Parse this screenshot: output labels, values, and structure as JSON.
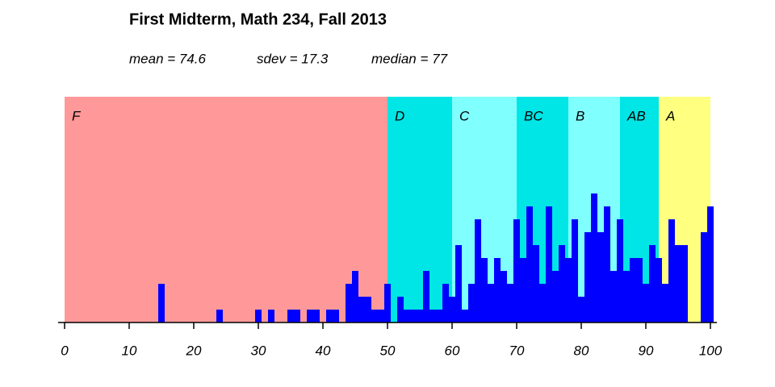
{
  "chart_data": {
    "type": "histogram",
    "title": "First Midterm, Math 234, Fall 2013",
    "stats": [
      "mean = 74.6",
      "sdev = 17.3",
      "median = 77"
    ],
    "color": "#0000ff",
    "bins": [
      14.5,
      15.5,
      16.5,
      17.5,
      18.5,
      19.5,
      20.5,
      21.5,
      22.5,
      23.5,
      24.5,
      25.5,
      26.5,
      27.5,
      28.5,
      29.5,
      30.5,
      31.5,
      32.5,
      33.5,
      34.5,
      35.5,
      36.5,
      37.5,
      38.5,
      39.5,
      40.5,
      41.5,
      42.5,
      43.5,
      44.5,
      45.5,
      46.5,
      47.5,
      48.5,
      49.5,
      50.5,
      51.5,
      52.5,
      53.5,
      54.5,
      55.5,
      56.5,
      57.5,
      58.5,
      59.5,
      60.5,
      61.5,
      62.5,
      63.5,
      64.5,
      65.5,
      66.5,
      67.5,
      68.5,
      69.5,
      70.5,
      71.5,
      72.5,
      73.5,
      74.5,
      75.5,
      76.5,
      77.5,
      78.5,
      79.5,
      80.5,
      81.5,
      82.5,
      83.5,
      84.5,
      85.5,
      86.5,
      87.5,
      88.5,
      89.5,
      90.5,
      91.5,
      92.5,
      93.5,
      94.5,
      95.5,
      96.5,
      97.5,
      98.5,
      99.5,
      100.5
    ],
    "counts": [
      3,
      0,
      0,
      0,
      0,
      0,
      0,
      0,
      0,
      1,
      0,
      0,
      0,
      0,
      0,
      1,
      0,
      1,
      0,
      0,
      1,
      1,
      0,
      1,
      1,
      0,
      1,
      1,
      0,
      3,
      4,
      2,
      2,
      1,
      1,
      3,
      0,
      2,
      1,
      1,
      1,
      4,
      1,
      1,
      3,
      2,
      6,
      1,
      3,
      8,
      5,
      3,
      5,
      4,
      3,
      8,
      5,
      9,
      6,
      3,
      9,
      4,
      6,
      5,
      8,
      2,
      7,
      10,
      7,
      9,
      4,
      8,
      4,
      5,
      5,
      3,
      6,
      5,
      3,
      8,
      6,
      6,
      0,
      0,
      7,
      9
    ],
    "bands": [
      {
        "label": "F",
        "from": 0,
        "to": 50,
        "color": "#ff9999"
      },
      {
        "label": "D",
        "from": 50,
        "to": 60,
        "color": "#00e5e5"
      },
      {
        "label": "C",
        "from": 60,
        "to": 70,
        "color": "#80ffff"
      },
      {
        "label": "BC",
        "from": 70,
        "to": 78,
        "color": "#00e5e5"
      },
      {
        "label": "B",
        "from": 78,
        "to": 86,
        "color": "#80ffff"
      },
      {
        "label": "AB",
        "from": 86,
        "to": 92,
        "color": "#00e5e5"
      },
      {
        "label": "A",
        "from": 92,
        "to": 100,
        "color": "#ffff80"
      }
    ],
    "xlim": [
      0,
      100
    ],
    "xticks": [
      0,
      10,
      20,
      30,
      40,
      50,
      60,
      70,
      80,
      90,
      100
    ],
    "ylim": [
      0,
      17.5
    ]
  }
}
